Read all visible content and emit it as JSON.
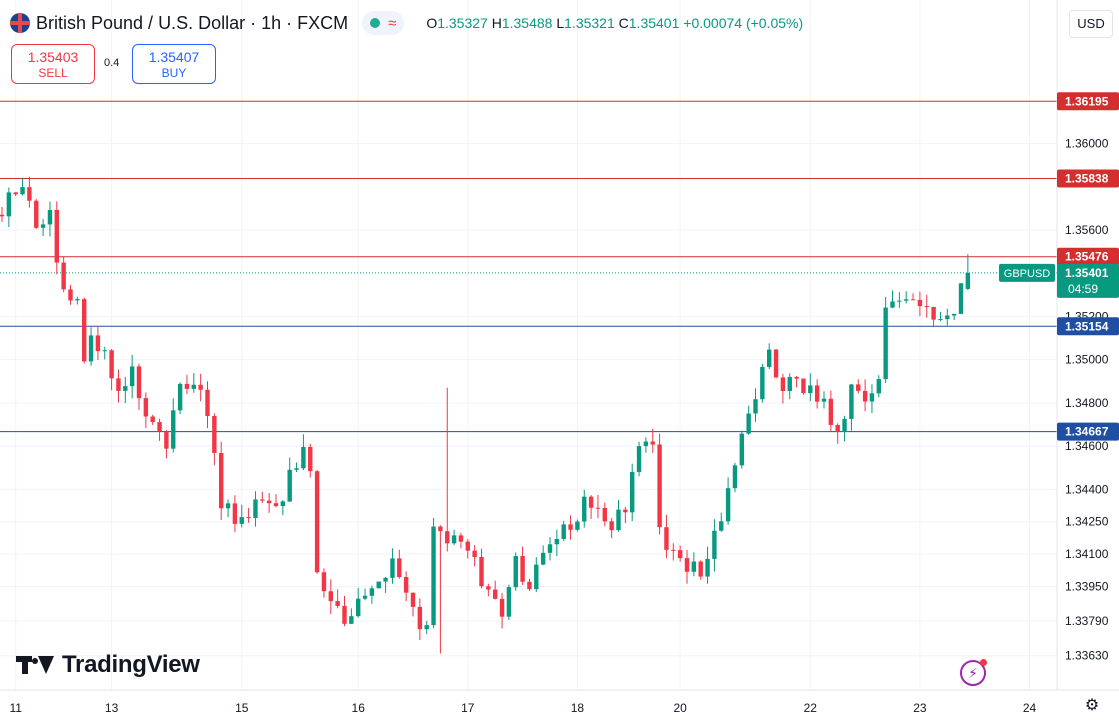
{
  "header": {
    "title": "British Pound / U.S. Dollar · 1h · FXCM",
    "ohlc": {
      "o_label": "O",
      "o": "1.35327",
      "h_label": "H",
      "h": "1.35488",
      "l_label": "L",
      "l": "1.35321",
      "c_label": "C",
      "c": "1.35401",
      "change": "+0.00074 (+0.05%)"
    },
    "status_icon": "market-open-dot",
    "wave_icon": "≈"
  },
  "trade": {
    "sell_price": "1.35403",
    "sell_label": "SELL",
    "spread": "0.4",
    "buy_price": "1.35407",
    "buy_label": "BUY"
  },
  "currency": "USD",
  "brand": "TradingView",
  "colors": {
    "up": "#089981",
    "down": "#f23645",
    "resistance": "#d32f2f",
    "support": "#1e4fa3"
  },
  "chart_data": {
    "type": "candlestick",
    "symbol": "GBPUSD",
    "countdown": "04:59",
    "ylim": [
      1.3355,
      1.364
    ],
    "price_ticks": [
      "1.36000",
      "1.35600",
      "1.35200",
      "1.35000",
      "1.34800",
      "1.34600",
      "1.34400",
      "1.34250",
      "1.34100",
      "1.33950",
      "1.33790",
      "1.33630"
    ],
    "date_ticks": [
      {
        "label": "11",
        "index": 2
      },
      {
        "label": "13",
        "index": 16
      },
      {
        "label": "15",
        "index": 35
      },
      {
        "label": "16",
        "index": 52
      },
      {
        "label": "17",
        "index": 68
      },
      {
        "label": "18",
        "index": 84
      },
      {
        "label": "20",
        "index": 99
      },
      {
        "label": "22",
        "index": 118
      },
      {
        "label": "23",
        "index": 134
      },
      {
        "label": "24",
        "index": 150
      }
    ],
    "horizontal_lines": [
      {
        "price": 1.36195,
        "label": "1.36195",
        "kind": "resistance"
      },
      {
        "price": 1.35838,
        "label": "1.35838",
        "kind": "resistance"
      },
      {
        "price": 1.35476,
        "label": "1.35476",
        "kind": "resistance"
      },
      {
        "price": 1.35154,
        "label": "1.35154",
        "kind": "support"
      },
      {
        "price": 1.34667,
        "label": "1.34667",
        "kind": "support"
      }
    ],
    "last_price": 1.35401,
    "last_label": "1.35401",
    "anchors": [
      [
        0,
        1.357
      ],
      [
        2,
        1.3575
      ],
      [
        3,
        1.3583
      ],
      [
        4,
        1.3577
      ],
      [
        5,
        1.356
      ],
      [
        7,
        1.3568
      ],
      [
        9,
        1.353
      ],
      [
        11,
        1.3528
      ],
      [
        12,
        1.35
      ],
      [
        13,
        1.3512
      ],
      [
        15,
        1.3502
      ],
      [
        17,
        1.3482
      ],
      [
        19,
        1.3495
      ],
      [
        21,
        1.3478
      ],
      [
        24,
        1.3462
      ],
      [
        26,
        1.349
      ],
      [
        28,
        1.3488
      ],
      [
        30,
        1.3475
      ],
      [
        32,
        1.3435
      ],
      [
        35,
        1.3425
      ],
      [
        37,
        1.3435
      ],
      [
        40,
        1.343
      ],
      [
        42,
        1.3448
      ],
      [
        44,
        1.346
      ],
      [
        45,
        1.345
      ],
      [
        46,
        1.3405
      ],
      [
        48,
        1.339
      ],
      [
        50,
        1.338
      ],
      [
        52,
        1.3385
      ],
      [
        54,
        1.3392
      ],
      [
        57,
        1.3405
      ],
      [
        59,
        1.3395
      ],
      [
        61,
        1.338
      ],
      [
        62,
        1.3375
      ],
      [
        63,
        1.3425
      ],
      [
        65,
        1.342
      ],
      [
        67,
        1.3415
      ],
      [
        69,
        1.3405
      ],
      [
        71,
        1.3395
      ],
      [
        73,
        1.3385
      ],
      [
        75,
        1.3405
      ],
      [
        77,
        1.3395
      ],
      [
        79,
        1.341
      ],
      [
        81,
        1.342
      ],
      [
        83,
        1.3425
      ],
      [
        85,
        1.3435
      ],
      [
        87,
        1.3432
      ],
      [
        89,
        1.3425
      ],
      [
        91,
        1.343
      ],
      [
        93,
        1.346
      ],
      [
        95,
        1.3465
      ],
      [
        96,
        1.342
      ],
      [
        98,
        1.341
      ],
      [
        100,
        1.3405
      ],
      [
        102,
        1.3402
      ],
      [
        104,
        1.342
      ],
      [
        106,
        1.344
      ],
      [
        108,
        1.3465
      ],
      [
        110,
        1.3485
      ],
      [
        112,
        1.35
      ],
      [
        114,
        1.349
      ],
      [
        116,
        1.349
      ],
      [
        118,
        1.3485
      ],
      [
        120,
        1.3478
      ],
      [
        122,
        1.3468
      ],
      [
        123,
        1.347
      ],
      [
        124,
        1.3485
      ],
      [
        126,
        1.3482
      ],
      [
        128,
        1.349
      ],
      [
        129,
        1.352
      ],
      [
        131,
        1.3527
      ],
      [
        133,
        1.3525
      ],
      [
        135,
        1.352
      ],
      [
        137,
        1.3522
      ],
      [
        139,
        1.3524
      ],
      [
        140,
        1.3533
      ],
      [
        141,
        1.35401
      ]
    ]
  }
}
